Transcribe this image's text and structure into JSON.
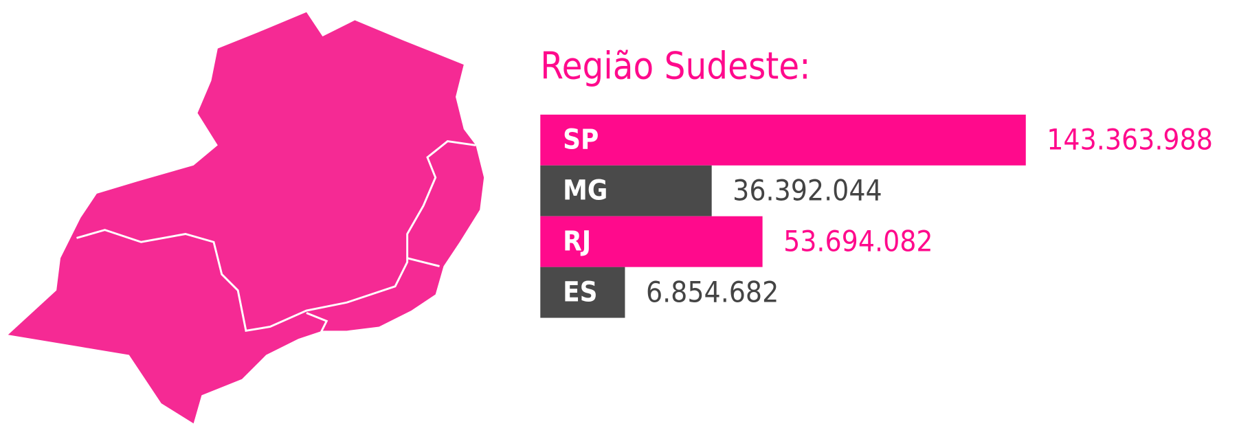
{
  "chart_data": {
    "type": "barh",
    "title": "Região Sudeste:",
    "categories": [
      "SP",
      "MG",
      "RJ",
      "ES"
    ],
    "values": [
      143363988,
      36392044,
      53694082,
      6854682
    ],
    "value_labels": [
      "143.363.988",
      "36.392.044",
      "53.694.082",
      "6.854.682"
    ],
    "colors": [
      "#ff0a8c",
      "#4a4a4a",
      "#ff0a8c",
      "#4a4a4a"
    ],
    "label_colors": [
      "#ff0a8c",
      "#444444",
      "#ff0a8c",
      "#444444"
    ]
  }
}
